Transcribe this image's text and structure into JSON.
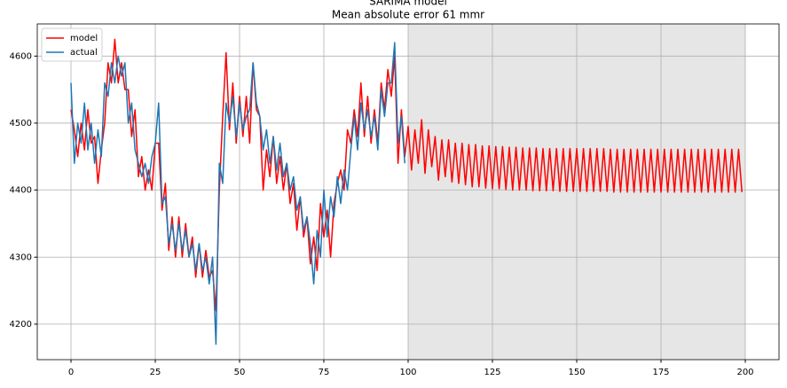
{
  "chart_data": {
    "type": "line",
    "title": "SARIMA model",
    "subtitle": "Mean absolute error 61 mmr",
    "x": [
      0,
      1,
      2,
      3,
      4,
      5,
      6,
      7,
      8,
      9,
      10,
      11,
      12,
      13,
      14,
      15,
      16,
      17,
      18,
      19,
      20,
      21,
      22,
      23,
      24,
      25,
      26,
      27,
      28,
      29,
      30,
      31,
      32,
      33,
      34,
      35,
      36,
      37,
      38,
      39,
      40,
      41,
      42,
      43,
      44,
      45,
      46,
      47,
      48,
      49,
      50,
      51,
      52,
      53,
      54,
      55,
      56,
      57,
      58,
      59,
      60,
      61,
      62,
      63,
      64,
      65,
      66,
      67,
      68,
      69,
      70,
      71,
      72,
      73,
      74,
      75,
      76,
      77,
      78,
      79,
      80,
      81,
      82,
      83,
      84,
      85,
      86,
      87,
      88,
      89,
      90,
      91,
      92,
      93,
      94,
      95,
      96,
      97,
      98,
      99,
      100,
      101,
      102,
      103,
      104,
      105,
      106,
      107,
      108,
      109,
      110,
      111,
      112,
      113,
      114,
      115,
      116,
      117,
      118,
      119,
      120,
      121,
      122,
      123,
      124,
      125,
      126,
      127,
      128,
      129,
      130,
      131,
      132,
      133,
      134,
      135,
      136,
      137,
      138,
      139,
      140,
      141,
      142,
      143,
      144,
      145,
      146,
      147,
      148,
      149,
      150,
      151,
      152,
      153,
      154,
      155,
      156,
      157,
      158,
      159,
      160,
      161,
      162,
      163,
      164,
      165,
      166,
      167,
      168,
      169,
      170,
      171,
      172,
      173,
      174,
      175,
      176,
      177,
      178,
      179,
      180,
      181,
      182,
      183,
      184,
      185,
      186,
      187,
      188,
      189,
      190,
      191,
      192,
      193,
      194,
      195,
      196,
      197,
      198,
      199
    ],
    "series": [
      {
        "name": "model",
        "color": "#ff0000",
        "values": [
          4520,
          4490,
          4450,
          4500,
          4460,
          4520,
          4470,
          4480,
          4410,
          4460,
          4500,
          4590,
          4560,
          4625,
          4560,
          4590,
          4550,
          4550,
          4480,
          4520,
          4420,
          4450,
          4400,
          4430,
          4400,
          4470,
          4470,
          4370,
          4410,
          4310,
          4360,
          4300,
          4360,
          4300,
          4350,
          4300,
          4330,
          4270,
          4320,
          4270,
          4310,
          4270,
          4280,
          4220,
          4400,
          4510,
          4605,
          4490,
          4560,
          4470,
          4540,
          4480,
          4540,
          4470,
          4590,
          4520,
          4510,
          4400,
          4460,
          4420,
          4480,
          4410,
          4450,
          4400,
          4440,
          4380,
          4410,
          4340,
          4390,
          4330,
          4360,
          4290,
          4330,
          4280,
          4380,
          4330,
          4370,
          4300,
          4380,
          4410,
          4430,
          4400,
          4490,
          4470,
          4520,
          4480,
          4560,
          4480,
          4540,
          4470,
          4520,
          4470,
          4560,
          4520,
          4580,
          4540,
          4600,
          4440,
          4520,
          4450,
          4495,
          4430,
          4490,
          4440,
          4505,
          4425,
          4490,
          4435,
          4480,
          4415,
          4475,
          4420,
          4475,
          4412,
          4470,
          4410,
          4470,
          4408,
          4468,
          4405,
          4468,
          4405,
          4466,
          4403,
          4466,
          4402,
          4465,
          4402,
          4465,
          4401,
          4464,
          4400,
          4464,
          4400,
          4463,
          4400,
          4463,
          4399,
          4463,
          4399,
          4462,
          4399,
          4462,
          4399,
          4462,
          4398,
          4462,
          4398,
          4462,
          4398,
          4462,
          4398,
          4462,
          4398,
          4462,
          4398,
          4462,
          4398,
          4462,
          4398,
          4461,
          4397,
          4461,
          4397,
          4461,
          4397,
          4461,
          4397,
          4461,
          4397,
          4461,
          4397,
          4461,
          4397,
          4461,
          4397,
          4461,
          4397,
          4461,
          4397,
          4461,
          4397,
          4461,
          4397,
          4461,
          4397,
          4461,
          4397,
          4461,
          4397,
          4461,
          4397,
          4461,
          4397,
          4461,
          4397,
          4461,
          4397,
          4461,
          4397
        ]
      },
      {
        "name": "actual",
        "color": "#1f77b4",
        "values": [
          4560,
          4440,
          4500,
          4470,
          4530,
          4460,
          4500,
          4440,
          4490,
          4450,
          4560,
          4540,
          4590,
          4560,
          4600,
          4570,
          4590,
          4500,
          4530,
          4460,
          4440,
          4420,
          4440,
          4410,
          4450,
          4470,
          4530,
          4380,
          4390,
          4320,
          4350,
          4310,
          4350,
          4310,
          4340,
          4300,
          4320,
          4280,
          4320,
          4280,
          4300,
          4260,
          4300,
          4170,
          4440,
          4410,
          4530,
          4500,
          4540,
          4480,
          4530,
          4490,
          4510,
          4520,
          4590,
          4530,
          4510,
          4460,
          4490,
          4440,
          4480,
          4430,
          4470,
          4420,
          4440,
          4400,
          4420,
          4370,
          4390,
          4340,
          4360,
          4320,
          4260,
          4340,
          4300,
          4400,
          4330,
          4390,
          4360,
          4420,
          4380,
          4430,
          4400,
          4460,
          4510,
          4460,
          4530,
          4490,
          4520,
          4480,
          4510,
          4460,
          4550,
          4510,
          4560,
          4560,
          4620,
          4470,
          4510,
          4440,
          null,
          null,
          null,
          null,
          null,
          null,
          null,
          null,
          null,
          null,
          null,
          null,
          null,
          null,
          null,
          null,
          null,
          null,
          null,
          null,
          null,
          null,
          null,
          null,
          null,
          null,
          null,
          null,
          null,
          null,
          null,
          null,
          null,
          null,
          null,
          null,
          null,
          null,
          null,
          null,
          null,
          null,
          null,
          null,
          null,
          null,
          null,
          null,
          null,
          null,
          null,
          null,
          null,
          null,
          null,
          null,
          null,
          null,
          null,
          null,
          null,
          null,
          null,
          null,
          null,
          null,
          null,
          null,
          null,
          null,
          null,
          null,
          null,
          null,
          null,
          null,
          null,
          null,
          null,
          null,
          null,
          null,
          null,
          null,
          null,
          null,
          null,
          null,
          null,
          null,
          null,
          null,
          null,
          null,
          null,
          null,
          null,
          null,
          null,
          null
        ]
      }
    ],
    "axvspan": [
      100,
      200
    ],
    "axvspan_color": "#e6e6e6",
    "xlim": [
      -10,
      210
    ],
    "xticks": [
      0,
      25,
      50,
      75,
      100,
      125,
      150,
      175,
      200
    ],
    "ylim": [
      4147,
      4648
    ],
    "yticks": [
      4200,
      4300,
      4400,
      4500,
      4600
    ],
    "grid": true,
    "legend": "upper-left"
  }
}
